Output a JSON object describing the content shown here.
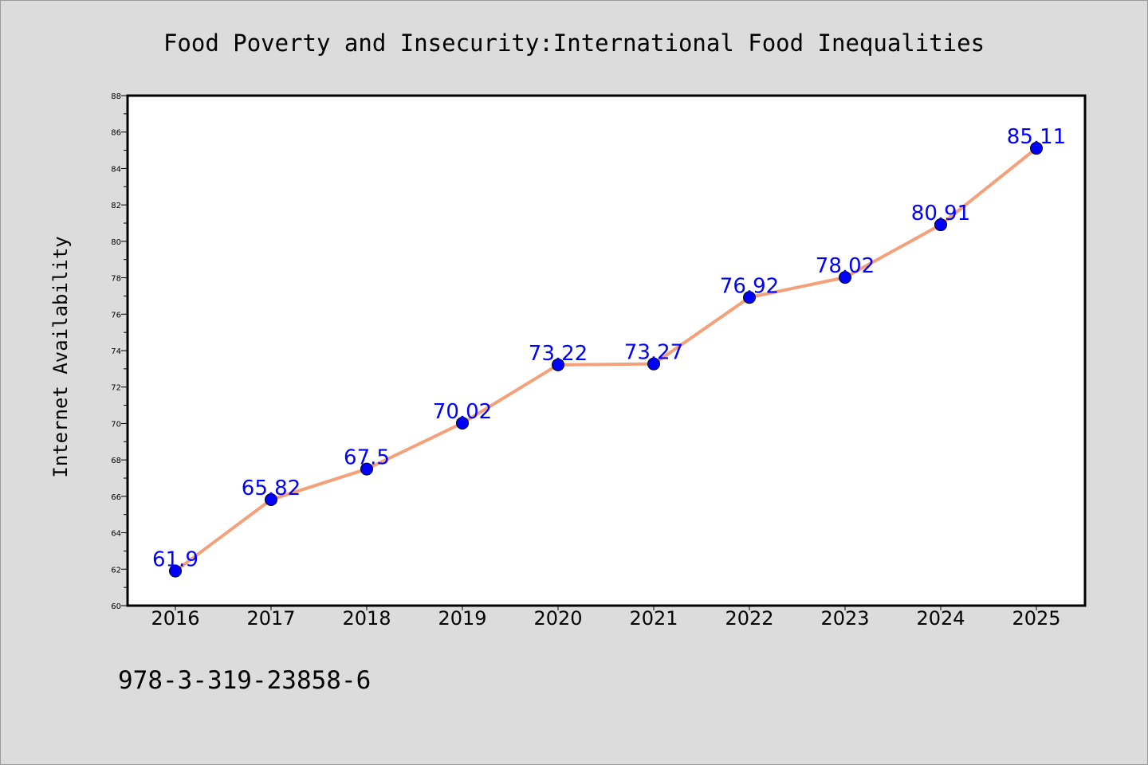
{
  "footer": {
    "isbn": "978-3-319-23858-6"
  },
  "colors": {
    "background": "#dcdcdc",
    "plot_background": "#ffffff",
    "line": "#f4a07a",
    "marker": "#0000ff",
    "data_label": "#0000ff"
  },
  "chart_data": {
    "type": "line",
    "title": "Food Poverty and Insecurity:International Food Inequalities",
    "xlabel": "",
    "ylabel": "Internet Availability",
    "categories": [
      "2016",
      "2017",
      "2018",
      "2019",
      "2020",
      "2021",
      "2022",
      "2023",
      "2024",
      "2025"
    ],
    "series": [
      {
        "values": [
          61.9,
          65.82,
          67.5,
          70.02,
          73.22,
          73.27,
          76.92,
          78.02,
          80.91,
          85.11
        ],
        "labels": [
          "61.9",
          "65.82",
          "67.5",
          "70.02",
          "73.22",
          "73.27",
          "76.92",
          "78.02",
          "80.91",
          "85.11"
        ]
      }
    ],
    "ylim": [
      60,
      88
    ],
    "yticks": [
      60,
      62,
      64,
      66,
      68,
      70,
      72,
      74,
      76,
      78,
      80,
      82,
      84,
      86,
      88
    ],
    "grid": false,
    "legend": "none"
  }
}
